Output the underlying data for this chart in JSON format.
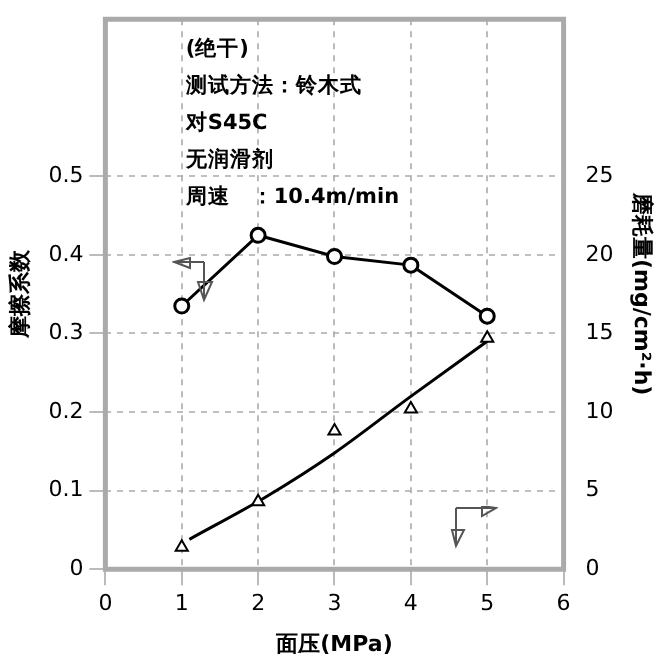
{
  "chart_data": {
    "type": "line",
    "xlabel": "面压(MPa)",
    "ylabel": "摩擦系数",
    "y2label": "磨耗量(mg/cm²·h)",
    "annotations": [
      "(绝干)",
      "测试方法：铃木式",
      "对S45C",
      "无润滑剂",
      "周速　：10.4m/min"
    ],
    "xlim": [
      0,
      6
    ],
    "xticks": [
      0,
      1,
      2,
      3,
      4,
      5,
      6
    ],
    "ylim": [
      0,
      0.7
    ],
    "yticks": [
      0,
      0.1,
      0.2,
      0.3,
      0.4,
      0.5
    ],
    "y2lim": [
      0,
      35
    ],
    "y2ticks": [
      0,
      5,
      10,
      15,
      20,
      25
    ],
    "grid": true,
    "legend": false,
    "line_style": "solid",
    "series": [
      {
        "marker": "circle",
        "color": "#000000",
        "x": [
          1,
          2,
          3,
          4,
          5
        ],
        "values": [
          0.335,
          0.425,
          0.398,
          0.387,
          0.322
        ]
      },
      {
        "type": "scatter",
        "marker": "triangle",
        "axis": "y2",
        "color": "#000000",
        "x": [
          1,
          2,
          3,
          4,
          5
        ],
        "values": [
          1.4,
          4.3,
          8.8,
          10.2,
          14.7
        ]
      },
      {
        "type": "line",
        "marker": "none",
        "axis": "y2",
        "color": "#000000",
        "x": [
          1.1,
          2.1,
          3,
          4,
          5
        ],
        "values": [
          1.9,
          4.6,
          7.4,
          11,
          14.5
        ]
      }
    ]
  }
}
